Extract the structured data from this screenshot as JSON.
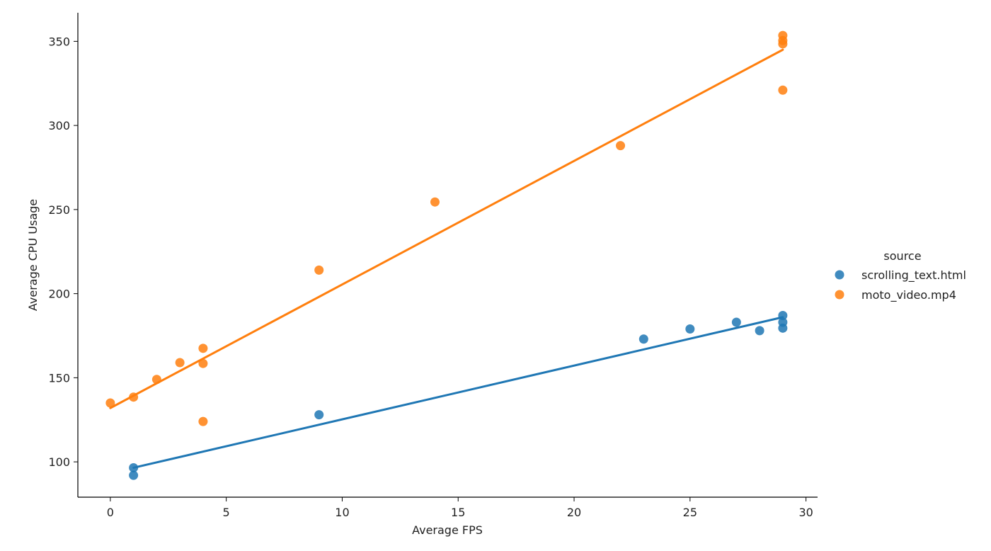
{
  "chart_data": {
    "type": "scatter",
    "title": "",
    "xlabel": "Average FPS",
    "ylabel": "Average CPU Usage",
    "xlim": [
      -1.4,
      30.5
    ],
    "ylim": [
      79,
      367
    ],
    "xticks": [
      0,
      5,
      10,
      15,
      20,
      25,
      30
    ],
    "yticks": [
      100,
      150,
      200,
      250,
      300,
      350
    ],
    "grid": false,
    "legend": {
      "title": "source",
      "placement": "right, outside plot area"
    },
    "series": [
      {
        "name": "scrolling_text.html",
        "color": "#1f77b4",
        "points": [
          {
            "x": 1,
            "y": 96.5
          },
          {
            "x": 1,
            "y": 92
          },
          {
            "x": 9,
            "y": 128
          },
          {
            "x": 23,
            "y": 173
          },
          {
            "x": 25,
            "y": 179
          },
          {
            "x": 27,
            "y": 183
          },
          {
            "x": 28,
            "y": 178
          },
          {
            "x": 29,
            "y": 187
          },
          {
            "x": 29,
            "y": 183
          },
          {
            "x": 29,
            "y": 179.5
          }
        ],
        "fit": [
          {
            "x": 1,
            "y": 96.5
          },
          {
            "x": 29,
            "y": 186
          }
        ]
      },
      {
        "name": "moto_video.mp4",
        "color": "#ff7f0e",
        "points": [
          {
            "x": 0,
            "y": 135
          },
          {
            "x": 1,
            "y": 138.5
          },
          {
            "x": 2,
            "y": 149
          },
          {
            "x": 3,
            "y": 159
          },
          {
            "x": 4,
            "y": 167.5
          },
          {
            "x": 4,
            "y": 158.5
          },
          {
            "x": 4,
            "y": 124
          },
          {
            "x": 9,
            "y": 214
          },
          {
            "x": 14,
            "y": 254.5
          },
          {
            "x": 22,
            "y": 288
          },
          {
            "x": 29,
            "y": 353.5
          },
          {
            "x": 29,
            "y": 350.5
          },
          {
            "x": 29,
            "y": 348.5
          },
          {
            "x": 29,
            "y": 321
          }
        ],
        "fit": [
          {
            "x": 0,
            "y": 132
          },
          {
            "x": 29,
            "y": 345
          }
        ]
      }
    ]
  }
}
